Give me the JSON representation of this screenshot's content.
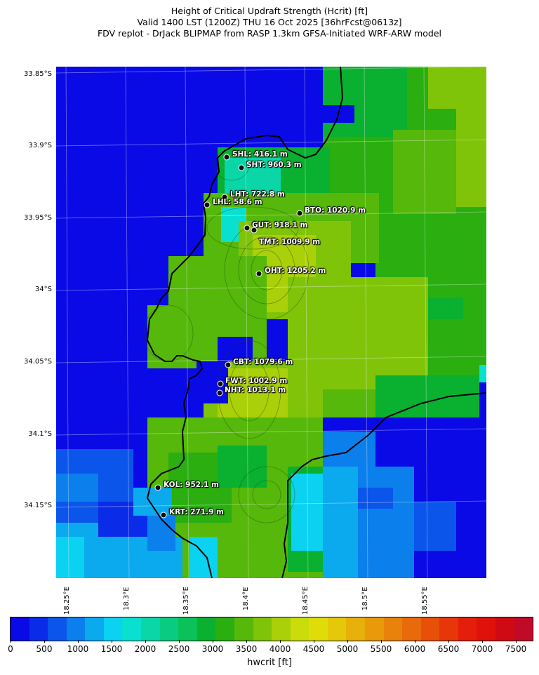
{
  "title": {
    "line1": "Height of Critical Updraft Strength (Hcrit) [ft]",
    "line2": "Valid 1400 LST (1200Z) THU 16 Oct 2025 [36hrFcst@0613z]",
    "line3": "FDV replot - DrJack BLIPMAP from RASP 1.3km GFSA-Initiated WRF-ARW model"
  },
  "axes": {
    "lat_labels": [
      "33.85°S",
      "33.9°S",
      "33.95°S",
      "34°S",
      "34.05°S",
      "34.1°S",
      "34.15°S"
    ],
    "lon_labels": [
      "18.25°E",
      "18.3°E",
      "18.35°E",
      "18.4°E",
      "18.45°E",
      "18.5°E",
      "18.55°E"
    ]
  },
  "stations": [
    {
      "id": "SHL",
      "label": "SHL: 416.1 m"
    },
    {
      "id": "SHT",
      "label": "SHT: 960.3 m"
    },
    {
      "id": "LHT",
      "label": "LHT: 722.8 m"
    },
    {
      "id": "LHL",
      "label": "LHL: 58.6 m"
    },
    {
      "id": "BTO",
      "label": "BTO: 1020.9 m"
    },
    {
      "id": "GUT",
      "label": "GUT: 918.1 m"
    },
    {
      "id": "TMT",
      "label": "TMT: 1009.9 m"
    },
    {
      "id": "OHT",
      "label": "OHT: 1205.2 m"
    },
    {
      "id": "CBT",
      "label": "CBT: 1079.6 m"
    },
    {
      "id": "FWT",
      "label": "FWT: 1002.9 m"
    },
    {
      "id": "NHT",
      "label": "NHT: 1013.1 m"
    },
    {
      "id": "KOL",
      "label": "KOL: 952.1 m"
    },
    {
      "id": "KRT",
      "label": "KRT: 271.9 m"
    }
  ],
  "colorbar": {
    "label": "hwcrit [ft]",
    "ticks": [
      "0",
      "500",
      "1000",
      "1500",
      "2000",
      "2500",
      "3000",
      "3500",
      "4000",
      "4500",
      "5000",
      "5500",
      "6000",
      "6500",
      "7000",
      "7500"
    ],
    "colors": [
      "#0a0ae6",
      "#0a2ce8",
      "#0b55ea",
      "#0b7fec",
      "#0ba9ee",
      "#0ad2f0",
      "#0ae0d0",
      "#0ad6a8",
      "#0acc80",
      "#0ac258",
      "#0ab030",
      "#2aae10",
      "#55b80a",
      "#80c40a",
      "#aad00a",
      "#cadc0a",
      "#e0dc0a",
      "#e6c80a",
      "#e8b00a",
      "#e89a0a",
      "#e8820a",
      "#e86a0a",
      "#e8500a",
      "#e6360a",
      "#e41e0a",
      "#e0100a",
      "#d00a14",
      "#c00a28"
    ],
    "max": 7750
  }
}
